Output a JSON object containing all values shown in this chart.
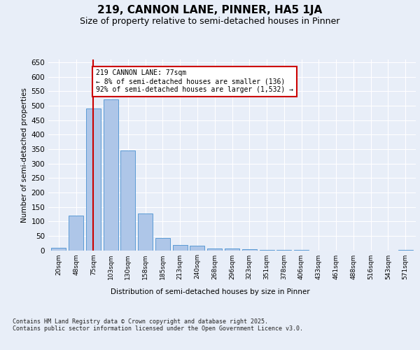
{
  "title": "219, CANNON LANE, PINNER, HA5 1JA",
  "subtitle": "Size of property relative to semi-detached houses in Pinner",
  "xlabel": "Distribution of semi-detached houses by size in Pinner",
  "ylabel": "Number of semi-detached properties",
  "categories": [
    "20sqm",
    "48sqm",
    "75sqm",
    "103sqm",
    "130sqm",
    "158sqm",
    "185sqm",
    "213sqm",
    "240sqm",
    "268sqm",
    "296sqm",
    "323sqm",
    "351sqm",
    "378sqm",
    "406sqm",
    "433sqm",
    "461sqm",
    "488sqm",
    "516sqm",
    "543sqm",
    "571sqm"
  ],
  "values": [
    9,
    119,
    490,
    522,
    345,
    127,
    42,
    18,
    16,
    7,
    5,
    4,
    2,
    1,
    1,
    0,
    0,
    0,
    0,
    0,
    2
  ],
  "bar_color": "#aec6e8",
  "bar_edge_color": "#5b9bd5",
  "ref_line_x": 2,
  "ref_line_color": "#cc0000",
  "annotation_text": "219 CANNON LANE: 77sqm\n← 8% of semi-detached houses are smaller (136)\n92% of semi-detached houses are larger (1,532) →",
  "annotation_box_color": "#cc0000",
  "background_color": "#e8eef8",
  "plot_bg_color": "#e8eef8",
  "ylim": [
    0,
    660
  ],
  "yticks": [
    0,
    50,
    100,
    150,
    200,
    250,
    300,
    350,
    400,
    450,
    500,
    550,
    600,
    650
  ],
  "footer": "Contains HM Land Registry data © Crown copyright and database right 2025.\nContains public sector information licensed under the Open Government Licence v3.0.",
  "title_fontsize": 11,
  "subtitle_fontsize": 9
}
